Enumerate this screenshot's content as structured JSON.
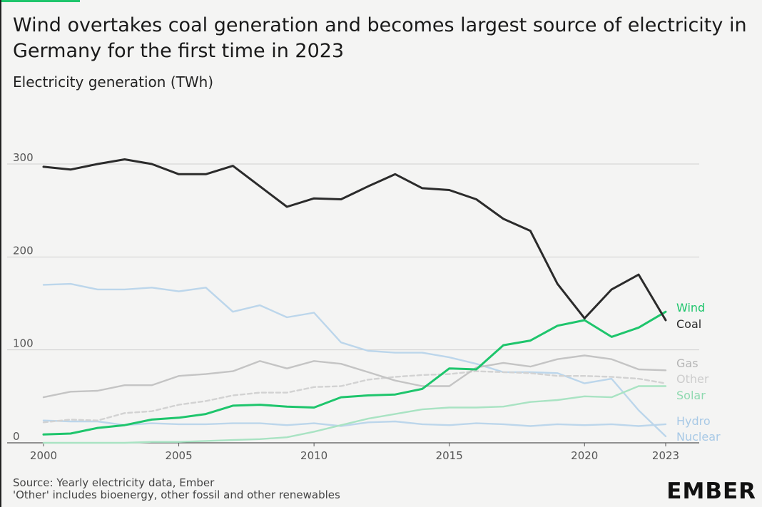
{
  "title": "Wind overtakes coal generation and becomes largest source of electricity in Germany for the first time in 2023",
  "subtitle": "Electricity generation (TWh)",
  "footer": {
    "source": "Source: Yearly electricity data, Ember",
    "note": "'Other' includes bioenergy, other fossil and other renewables"
  },
  "logo": "EMBER",
  "colors": {
    "accent": "#1ec56c",
    "background": "#f4f4f3"
  },
  "chart_data": {
    "type": "line",
    "xlim": [
      2000,
      2023
    ],
    "ylim": [
      0,
      300
    ],
    "yticks": [
      0,
      100,
      200,
      300
    ],
    "xticks": [
      2000,
      2005,
      2010,
      2015,
      2020,
      2023
    ],
    "x": [
      2000,
      2001,
      2002,
      2003,
      2004,
      2005,
      2006,
      2007,
      2008,
      2009,
      2010,
      2011,
      2012,
      2013,
      2014,
      2015,
      2016,
      2017,
      2018,
      2019,
      2020,
      2021,
      2022,
      2023
    ],
    "series": [
      {
        "name": "Nuclear",
        "color": "#bcd6eb",
        "dash": false,
        "values": [
          170,
          171,
          165,
          165,
          167,
          163,
          167,
          141,
          148,
          135,
          140,
          108,
          99,
          97,
          97,
          92,
          85,
          76,
          76,
          75,
          64,
          69,
          35,
          7
        ]
      },
      {
        "name": "Hydro",
        "color": "#bcd6eb",
        "dash": false,
        "values": [
          24,
          23,
          23,
          19,
          21,
          20,
          20,
          21,
          21,
          19,
          21,
          18,
          22,
          23,
          20,
          19,
          21,
          20,
          18,
          20,
          19,
          20,
          18,
          20
        ]
      },
      {
        "name": "Solar",
        "color": "#a9e3c3",
        "dash": false,
        "values": [
          0,
          0,
          0,
          0,
          1,
          1,
          2,
          3,
          4,
          6,
          12,
          19,
          26,
          31,
          36,
          38,
          38,
          39,
          44,
          46,
          50,
          49,
          61,
          61
        ]
      },
      {
        "name": "Other",
        "color": "#d2d2d2",
        "dash": true,
        "values": [
          22,
          25,
          24,
          32,
          34,
          41,
          45,
          51,
          54,
          54,
          60,
          61,
          68,
          71,
          73,
          74,
          77,
          76,
          75,
          72,
          72,
          71,
          69,
          64
        ]
      },
      {
        "name": "Gas",
        "color": "#c4c4c4",
        "dash": false,
        "values": [
          49,
          55,
          56,
          62,
          62,
          72,
          74,
          77,
          88,
          80,
          88,
          85,
          76,
          67,
          61,
          61,
          81,
          86,
          82,
          90,
          94,
          90,
          79,
          78
        ]
      },
      {
        "name": "Wind",
        "color": "#1ec56c",
        "dash": false,
        "values": [
          9,
          10,
          16,
          19,
          25,
          27,
          31,
          40,
          41,
          39,
          38,
          49,
          51,
          52,
          58,
          80,
          79,
          105,
          110,
          126,
          132,
          114,
          124,
          141
        ]
      },
      {
        "name": "Coal",
        "color": "#2b2b2b",
        "dash": false,
        "values": [
          297,
          294,
          300,
          305,
          300,
          289,
          289,
          298,
          276,
          254,
          263,
          262,
          276,
          289,
          274,
          272,
          262,
          241,
          228,
          171,
          134,
          165,
          181,
          132
        ]
      }
    ],
    "legend": [
      {
        "label": "Wind",
        "color": "#1ec56c",
        "value": 141
      },
      {
        "label": "Coal",
        "color": "#2b2b2b",
        "value": 132
      },
      {
        "label": "Gas",
        "color": "#b5b5b5",
        "value": 78
      },
      {
        "label": "Other",
        "color": "#cdcdcd",
        "value": 64
      },
      {
        "label": "Solar",
        "color": "#8fd9b0",
        "value": 61
      },
      {
        "label": "Hydro",
        "color": "#a8c9e6",
        "value": 20
      },
      {
        "label": "Nuclear",
        "color": "#a8c9e6",
        "value": 7
      }
    ]
  }
}
